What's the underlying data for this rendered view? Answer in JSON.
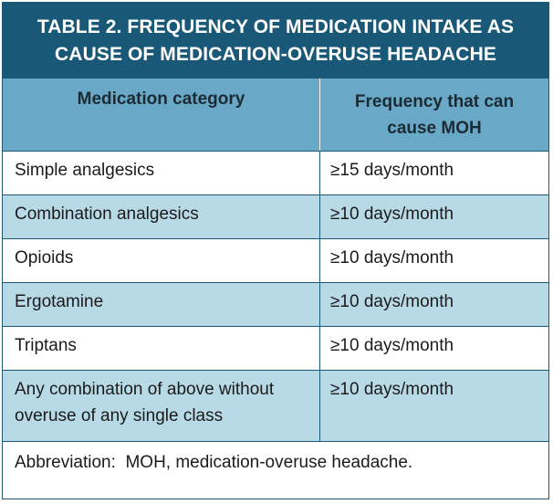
{
  "table": {
    "title_line1": "TABLE 2. FREQUENCY OF MEDICATION INTAKE AS",
    "title_line2": "CAUSE OF MEDICATION-OVERUSE HEADACHE",
    "header_col1": "Medication category",
    "header_col2_line1": "Frequency that can",
    "header_col2_line2": "cause MOH",
    "rows": [
      {
        "category": "Simple analgesics",
        "frequency": "≥15 days/month"
      },
      {
        "category": "Combination analgesics",
        "frequency": "≥10 days/month"
      },
      {
        "category": "Opioids",
        "frequency": "≥10 days/month"
      },
      {
        "category": "Ergotamine",
        "frequency": "≥10 days/month"
      },
      {
        "category": "Triptans",
        "frequency": "≥10 days/month"
      },
      {
        "category_line1": "Any combination of above without",
        "category_line2": "overuse of any single class",
        "frequency": "≥10 days/month"
      }
    ],
    "footnote": "Abbreviation:  MOH, medication-overuse headache."
  },
  "colors": {
    "title_background": "#1a5877",
    "header_background": "#69a9c7",
    "shaded_row": "#b8dae6",
    "border": "#1d5a78"
  }
}
